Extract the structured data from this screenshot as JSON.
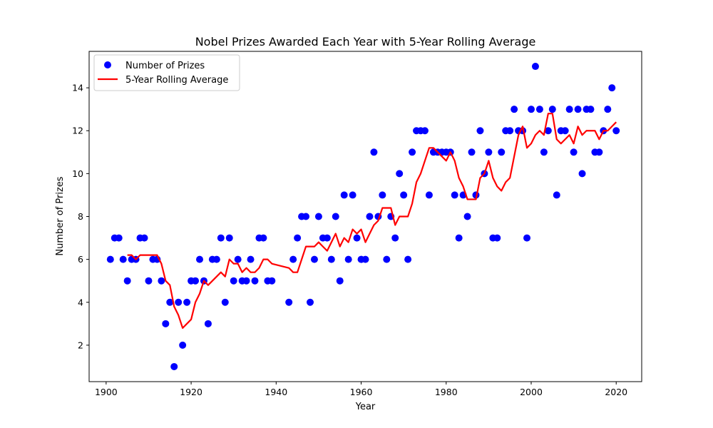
{
  "chart_data": {
    "type": "scatter",
    "title": "Nobel Prizes Awarded Each Year with 5-Year Rolling Average",
    "xlabel": "Year",
    "ylabel": "Number of Prizes",
    "xlim": [
      1896,
      2026
    ],
    "ylim": [
      0.3,
      15.7
    ],
    "xticks": [
      1900,
      1920,
      1940,
      1960,
      1980,
      2000,
      2020
    ],
    "yticks": [
      2,
      4,
      6,
      8,
      10,
      12,
      14
    ],
    "grid": false,
    "legend_position": "top-left",
    "series": [
      {
        "name": "Number of Prizes",
        "kind": "scatter",
        "color": "#0000ff",
        "x": [
          1901,
          1902,
          1903,
          1904,
          1905,
          1906,
          1907,
          1908,
          1909,
          1910,
          1911,
          1912,
          1913,
          1914,
          1915,
          1916,
          1917,
          1918,
          1919,
          1920,
          1921,
          1922,
          1923,
          1924,
          1925,
          1926,
          1927,
          1928,
          1929,
          1930,
          1931,
          1932,
          1933,
          1934,
          1935,
          1936,
          1937,
          1938,
          1939,
          1943,
          1944,
          1945,
          1946,
          1947,
          1948,
          1949,
          1950,
          1951,
          1952,
          1953,
          1954,
          1955,
          1956,
          1957,
          1958,
          1959,
          1960,
          1961,
          1962,
          1963,
          1964,
          1965,
          1966,
          1967,
          1968,
          1969,
          1970,
          1971,
          1972,
          1973,
          1974,
          1975,
          1976,
          1977,
          1978,
          1979,
          1980,
          1981,
          1982,
          1983,
          1984,
          1985,
          1986,
          1987,
          1988,
          1989,
          1990,
          1991,
          1992,
          1993,
          1994,
          1995,
          1996,
          1997,
          1998,
          1999,
          2000,
          2001,
          2002,
          2003,
          2004,
          2005,
          2006,
          2007,
          2008,
          2009,
          2010,
          2011,
          2012,
          2013,
          2014,
          2015,
          2016,
          2017,
          2018,
          2019,
          2020
        ],
        "y": [
          6,
          7,
          7,
          6,
          5,
          6,
          6,
          7,
          7,
          5,
          6,
          6,
          5,
          3,
          4,
          1,
          4,
          2,
          4,
          5,
          5,
          6,
          5,
          3,
          6,
          6,
          7,
          4,
          7,
          5,
          6,
          5,
          5,
          6,
          5,
          7,
          7,
          5,
          5,
          4,
          6,
          7,
          8,
          8,
          4,
          6,
          8,
          7,
          7,
          6,
          8,
          5,
          9,
          6,
          9,
          7,
          6,
          6,
          8,
          11,
          8,
          9,
          6,
          8,
          7,
          10,
          9,
          6,
          11,
          12,
          12,
          12,
          9,
          11,
          11,
          11,
          11,
          11,
          9,
          7,
          9,
          8,
          11,
          9,
          12,
          10,
          11,
          7,
          7,
          11,
          12,
          12,
          13,
          12,
          12,
          7,
          13,
          15,
          13,
          11,
          12,
          13,
          9,
          12,
          12,
          13,
          11,
          13,
          10,
          13,
          13,
          11,
          11,
          12,
          13,
          14,
          12
        ]
      },
      {
        "name": "5-Year Rolling Average",
        "kind": "line",
        "color": "#ff0000",
        "x": [
          1905,
          1906,
          1907,
          1908,
          1909,
          1910,
          1911,
          1912,
          1913,
          1914,
          1915,
          1916,
          1917,
          1918,
          1919,
          1920,
          1921,
          1922,
          1923,
          1924,
          1925,
          1926,
          1927,
          1928,
          1929,
          1930,
          1931,
          1932,
          1933,
          1934,
          1935,
          1936,
          1937,
          1938,
          1939,
          1943,
          1944,
          1945,
          1946,
          1947,
          1948,
          1949,
          1950,
          1951,
          1952,
          1953,
          1954,
          1955,
          1956,
          1957,
          1958,
          1959,
          1960,
          1961,
          1962,
          1963,
          1964,
          1965,
          1966,
          1967,
          1968,
          1969,
          1970,
          1971,
          1972,
          1973,
          1974,
          1975,
          1976,
          1977,
          1978,
          1979,
          1980,
          1981,
          1982,
          1983,
          1984,
          1985,
          1986,
          1987,
          1988,
          1989,
          1990,
          1991,
          1992,
          1993,
          1994,
          1995,
          1996,
          1997,
          1998,
          1999,
          2000,
          2001,
          2002,
          2003,
          2004,
          2005,
          2006,
          2007,
          2008,
          2009,
          2010,
          2011,
          2012,
          2013,
          2014,
          2015,
          2016,
          2017,
          2018,
          2019,
          2020
        ],
        "y": [
          6.2,
          6.2,
          6.0,
          6.2,
          6.2,
          6.2,
          6.2,
          6.2,
          5.8,
          5.0,
          4.8,
          3.8,
          3.4,
          2.8,
          3.0,
          3.2,
          4.0,
          4.4,
          5.0,
          4.8,
          5.0,
          5.2,
          5.4,
          5.2,
          6.0,
          5.8,
          5.8,
          5.4,
          5.6,
          5.4,
          5.4,
          5.6,
          6.0,
          6.0,
          5.8,
          5.6,
          5.4,
          5.4,
          6.0,
          6.6,
          6.6,
          6.6,
          6.8,
          6.6,
          6.4,
          6.8,
          7.2,
          6.6,
          7.0,
          6.8,
          7.4,
          7.2,
          7.4,
          6.8,
          7.2,
          7.6,
          7.8,
          8.4,
          8.4,
          8.4,
          7.6,
          8.0,
          8.0,
          8.0,
          8.6,
          9.6,
          10.0,
          10.6,
          11.2,
          11.2,
          11.0,
          10.8,
          10.6,
          11.0,
          10.6,
          9.8,
          9.4,
          8.8,
          8.8,
          8.8,
          9.8,
          10.0,
          10.6,
          9.8,
          9.4,
          9.2,
          9.6,
          9.8,
          10.8,
          11.8,
          12.2,
          11.2,
          11.4,
          11.8,
          12.0,
          11.8,
          12.8,
          12.8,
          11.6,
          11.4,
          11.6,
          11.8,
          11.4,
          12.2,
          11.8,
          12.0,
          12.0,
          12.0,
          11.6,
          12.0,
          12.0,
          12.2,
          12.4
        ]
      }
    ]
  }
}
